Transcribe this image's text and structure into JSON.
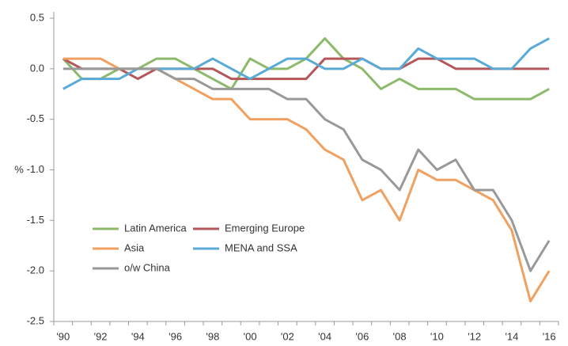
{
  "chart_data": {
    "type": "line",
    "y_label": "%",
    "categories": [
      "'90",
      null,
      "'92",
      null,
      "'94",
      null,
      "'96",
      null,
      "'98",
      null,
      "'00",
      null,
      "'02",
      null,
      "'04",
      null,
      "'06",
      null,
      "'08",
      null,
      "'10",
      null,
      "'12",
      null,
      "'14",
      null,
      "'16"
    ],
    "ylim": [
      -2.5,
      0.5
    ],
    "yticks": [
      0.5,
      {
        "value": 0,
        "label": "0.0"
      },
      -0.5,
      {
        "value": -1,
        "label": "-1.0"
      },
      -1.5,
      {
        "value": -2,
        "label": "-2.0"
      },
      -2.5
    ],
    "grid": false,
    "series": [
      {
        "name": "Latin America",
        "color": "#8dba6a",
        "values": [
          0.1,
          -0.1,
          -0.1,
          0,
          0,
          0.1,
          0.1,
          0,
          -0.1,
          -0.2,
          0.1,
          0,
          0,
          0.1,
          0.3,
          0.1,
          0,
          -0.2,
          -0.1,
          -0.2,
          -0.2,
          -0.2,
          -0.3,
          -0.3,
          -0.3,
          -0.3,
          -0.2
        ]
      },
      {
        "name": "Emerging Europe",
        "color": "#b5575a",
        "values": [
          0.1,
          0,
          0,
          0,
          -0.1,
          0,
          0,
          0,
          0,
          -0.1,
          -0.1,
          -0.1,
          -0.1,
          -0.1,
          0.1,
          0.1,
          0.1,
          0,
          0,
          0.1,
          0.1,
          0,
          0,
          0,
          0,
          0,
          0
        ]
      },
      {
        "name": "Asia",
        "color": "#f0a060",
        "values": [
          0.1,
          0.1,
          0.1,
          0,
          0,
          0,
          -0.1,
          -0.2,
          -0.3,
          -0.3,
          -0.5,
          -0.5,
          -0.5,
          -0.6,
          -0.8,
          -0.9,
          -1.3,
          -1.2,
          -1.5,
          -1.0,
          -1.1,
          -1.1,
          -1.2,
          -1.3,
          -1.6,
          -2.3,
          -2.0
        ]
      },
      {
        "name": "MENA and SSA",
        "color": "#5aaad8",
        "values": [
          -0.2,
          -0.1,
          -0.1,
          -0.1,
          0,
          0,
          0,
          0,
          0.1,
          0,
          -0.1,
          0,
          0.1,
          0.1,
          0,
          0,
          0.1,
          0,
          0,
          0.2,
          0.1,
          0.1,
          0.1,
          0,
          0,
          0.2,
          0.3
        ]
      },
      {
        "name": "o/w China",
        "color": "#999999",
        "values": [
          0,
          0,
          0,
          0,
          0,
          0,
          -0.1,
          -0.1,
          -0.2,
          -0.2,
          -0.2,
          -0.2,
          -0.3,
          -0.3,
          -0.5,
          -0.6,
          -0.9,
          -1.0,
          -1.2,
          -0.8,
          -1.0,
          -0.9,
          -1.2,
          -1.2,
          -1.5,
          -2.0,
          -1.7
        ]
      }
    ]
  }
}
